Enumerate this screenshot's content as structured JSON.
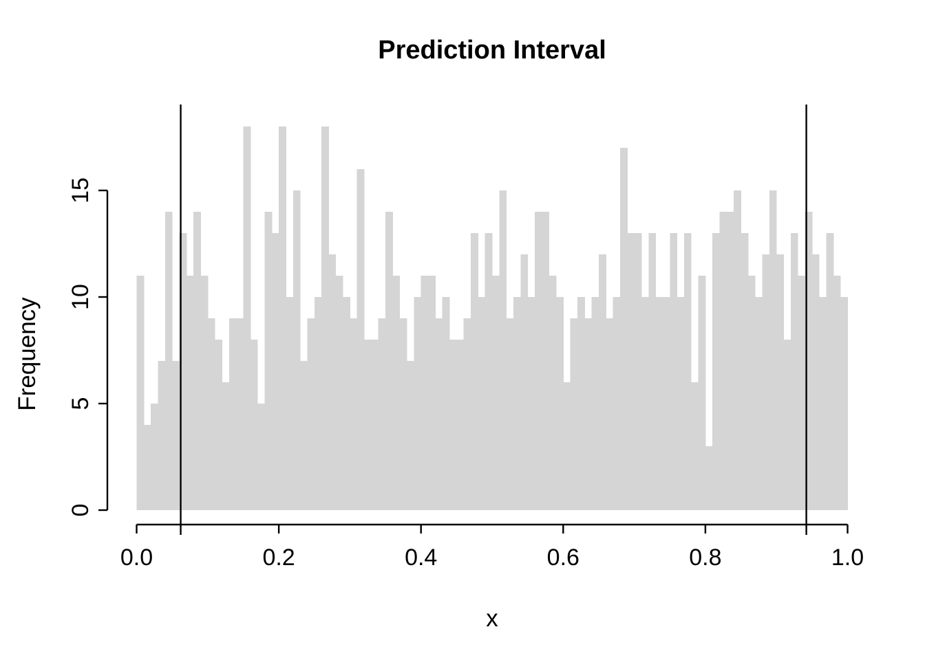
{
  "title": "Prediction Interval",
  "xlabel": "x",
  "ylabel": "Frequency",
  "colors": {
    "bar_fill": "#d5d5d5",
    "axis": "#000000",
    "interval_line": "#000000",
    "background": "#ffffff"
  },
  "chart_data": {
    "type": "bar",
    "subtype": "histogram",
    "title": "Prediction Interval",
    "xlabel": "x",
    "ylabel": "Frequency",
    "xlim": [
      0.0,
      1.0
    ],
    "ylim": [
      0,
      18
    ],
    "grid": "off",
    "legend": "none",
    "bin_width": 0.01,
    "bin_start": 0.0,
    "x_tick_labels": [
      "0.0",
      "0.2",
      "0.4",
      "0.6",
      "0.8",
      "1.0"
    ],
    "x_tick_values": [
      0.0,
      0.2,
      0.4,
      0.6,
      0.8,
      1.0
    ],
    "y_tick_labels": [
      "0",
      "5",
      "10",
      "15"
    ],
    "y_tick_values": [
      0,
      5,
      10,
      15
    ],
    "counts": [
      11,
      4,
      5,
      7,
      14,
      7,
      13,
      11,
      14,
      11,
      9,
      8,
      6,
      9,
      9,
      18,
      8,
      5,
      14,
      13,
      18,
      10,
      15,
      7,
      9,
      10,
      18,
      12,
      11,
      10,
      9,
      16,
      8,
      8,
      9,
      14,
      11,
      9,
      7,
      10,
      11,
      11,
      9,
      10,
      8,
      8,
      9,
      13,
      10,
      13,
      11,
      15,
      9,
      10,
      12,
      10,
      14,
      14,
      11,
      10,
      6,
      9,
      10,
      9,
      10,
      12,
      9,
      10,
      17,
      13,
      13,
      10,
      13,
      10,
      10,
      13,
      10,
      13,
      6,
      11,
      3,
      13,
      14,
      14,
      15,
      13,
      11,
      10,
      12,
      15,
      12,
      8,
      13,
      11,
      14,
      12,
      10,
      13,
      11,
      10
    ],
    "prediction_interval_lines_x": [
      0.062,
      0.942
    ]
  }
}
